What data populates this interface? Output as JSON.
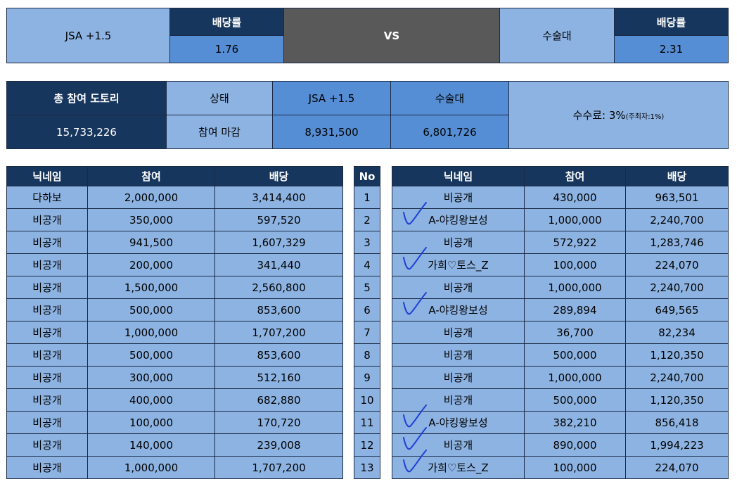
{
  "match": {
    "team1": "JSA +1.5",
    "odds_header1": "배당률",
    "odds1": "1.76",
    "vs": "VS",
    "team2": "수술대",
    "odds_header2": "배당률",
    "odds2": "2.31"
  },
  "summary": {
    "total_label": "총 참여 도토리",
    "total_value": "15,733,226",
    "status_label": "상태",
    "status_value": "참여 마감",
    "team1_label": "JSA +1.5",
    "team1_value": "8,931,500",
    "team2_label": "수술대",
    "team2_value": "6,801,726",
    "fee_text": "수수료: 3%",
    "fee_note": "(주최자:1%)"
  },
  "left_table": {
    "headers": [
      "닉네임",
      "참여",
      "배당"
    ],
    "rows": [
      [
        "다하보",
        "2,000,000",
        "3,414,400"
      ],
      [
        "비공개",
        "350,000",
        "597,520"
      ],
      [
        "비공개",
        "941,500",
        "1,607,329"
      ],
      [
        "비공개",
        "200,000",
        "341,440"
      ],
      [
        "비공개",
        "1,500,000",
        "2,560,800"
      ],
      [
        "비공개",
        "500,000",
        "853,600"
      ],
      [
        "비공개",
        "1,000,000",
        "1,707,200"
      ],
      [
        "비공개",
        "500,000",
        "853,600"
      ],
      [
        "비공개",
        "300,000",
        "512,160"
      ],
      [
        "비공개",
        "400,000",
        "682,880"
      ],
      [
        "비공개",
        "100,000",
        "170,720"
      ],
      [
        "비공개",
        "140,000",
        "239,008"
      ],
      [
        "비공개",
        "1,000,000",
        "1,707,200"
      ]
    ]
  },
  "no_column": {
    "header": "No",
    "values": [
      "1",
      "2",
      "3",
      "4",
      "5",
      "6",
      "7",
      "8",
      "9",
      "10",
      "11",
      "12",
      "13"
    ]
  },
  "right_table": {
    "headers": [
      "닉네임",
      "참여",
      "배당"
    ],
    "rows": [
      [
        "비공개",
        "430,000",
        "963,501"
      ],
      [
        "A-야킹왕보성",
        "1,000,000",
        "2,240,700"
      ],
      [
        "비공개",
        "572,922",
        "1,283,746"
      ],
      [
        "가희♡토스_Z",
        "100,000",
        "224,070"
      ],
      [
        "비공개",
        "1,000,000",
        "2,240,700"
      ],
      [
        "A-야킹왕보성",
        "289,894",
        "649,565"
      ],
      [
        "비공개",
        "36,700",
        "82,234"
      ],
      [
        "비공개",
        "500,000",
        "1,120,350"
      ],
      [
        "비공개",
        "1,000,000",
        "2,240,700"
      ],
      [
        "비공개",
        "500,000",
        "1,120,350"
      ],
      [
        "A-야킹왕보성",
        "382,210",
        "856,418"
      ],
      [
        "비공개",
        "890,000",
        "1,994,223"
      ],
      [
        "가희♡토스_Z",
        "100,000",
        "224,070"
      ]
    ]
  },
  "check_marks": {
    "color": "#1f3fd6",
    "marked_rows": [
      2,
      4,
      6,
      11,
      12,
      13
    ]
  }
}
